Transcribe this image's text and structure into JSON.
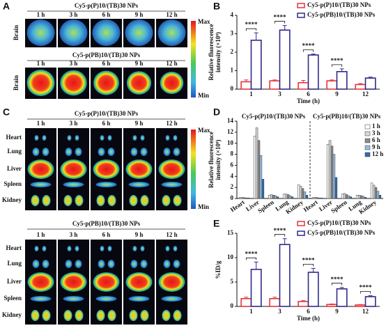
{
  "imaging": {
    "A": {
      "label": "A",
      "scale": [
        "Max",
        "Min"
      ],
      "groups": [
        {
          "title": "Cy5-p(P)10/(TB)30 NPs",
          "times": [
            "1 h",
            "3 h",
            "6 h",
            "9 h",
            "12 h"
          ],
          "organs": [
            "Brain"
          ]
        },
        {
          "title": "Cy5-p(PB)10/(TB)30 NPs",
          "times": [
            "1 h",
            "3 h",
            "6 h",
            "9 h",
            "12 h"
          ],
          "organs": [
            "Brain"
          ]
        }
      ]
    },
    "C": {
      "label": "C",
      "scale": [
        "Max",
        "Min"
      ],
      "groups": [
        {
          "title": "Cy5-p(P)10/(TB)30 NPs",
          "times": [
            "1 h",
            "3 h",
            "6 h",
            "9 h",
            "12 h"
          ],
          "organs": [
            "Heart",
            "Lung",
            "Liver",
            "Spleen",
            "Kidney"
          ]
        },
        {
          "title": "Cy5-p(PB)10/(TB)30 NPs",
          "times": [
            "1 h",
            "3 h",
            "6 h",
            "9 h",
            "12 h"
          ],
          "organs": [
            "Heart",
            "Lung",
            "Liver",
            "Spleen",
            "Kidney"
          ]
        }
      ]
    }
  },
  "chart_data": [
    {
      "type": "bar",
      "label": "B",
      "xlabel": "Time (h)",
      "ylabel": [
        "Relative fluorescence",
        "intensity (×10⁸)"
      ],
      "categories": [
        "1",
        "3",
        "6",
        "9",
        "12"
      ],
      "outline_bars": true,
      "legend": "upper right",
      "series": [
        {
          "name": "Cy5-p(P)10/(TB)30 NPs",
          "color": "#e8333a",
          "values": [
            0.4,
            0.45,
            0.35,
            0.45,
            0.25
          ],
          "errors": [
            0.1,
            0.05,
            0.12,
            0.05,
            0.05
          ]
        },
        {
          "name": "Cy5-p(PB)10/(TB)30 NPs",
          "color": "#2e2a8a",
          "values": [
            2.65,
            3.2,
            1.85,
            0.95,
            0.6
          ],
          "errors": [
            0.4,
            0.25,
            0.05,
            0.15,
            0.05
          ]
        }
      ],
      "significance": [
        "****",
        "****",
        "****",
        "****",
        null
      ],
      "ylim": [
        0,
        4
      ],
      "yticks": [
        0,
        1,
        2,
        3,
        4
      ]
    },
    {
      "type": "bar",
      "label": "D",
      "ylabel": [
        "Relative fluorescence",
        "intensity (×10⁸)"
      ],
      "categories": [
        "Heart",
        "Liver",
        "Spleen",
        "Lung",
        "Kidney",
        "Heart",
        "Liver",
        "Spleen",
        "Lung",
        "Kidney"
      ],
      "group_labels": [
        "Cy5-p(P)10/(TB)30 NPs",
        "Cy5-p(PB)10/(TB)30 NPs"
      ],
      "outline_bars": false,
      "legend": "upper right",
      "series": [
        {
          "name": "1 h",
          "color": "#ffffff",
          "values": [
            0.2,
            11.3,
            0.6,
            0.8,
            2.5,
            0.2,
            9.8,
            0.8,
            0.6,
            2.8
          ]
        },
        {
          "name": "3 h",
          "color": "#d9d9d9",
          "values": [
            0.2,
            12.8,
            0.7,
            0.8,
            2.2,
            0.2,
            10.5,
            0.9,
            0.6,
            2.4
          ]
        },
        {
          "name": "6 h",
          "color": "#8c8c8c",
          "values": [
            0.15,
            10.5,
            0.6,
            0.7,
            1.8,
            0.15,
            9.5,
            0.7,
            0.5,
            2.0
          ]
        },
        {
          "name": "9 h",
          "color": "#9bbde0",
          "values": [
            0.1,
            7.8,
            0.5,
            0.5,
            1.2,
            0.1,
            8.0,
            0.5,
            0.4,
            1.3
          ]
        },
        {
          "name": "12 h",
          "color": "#2f6db5",
          "values": [
            0.1,
            3.5,
            0.3,
            0.3,
            0.6,
            0.1,
            3.8,
            0.3,
            0.2,
            0.6
          ]
        }
      ],
      "ylim": [
        0,
        14
      ],
      "yticks": [
        0,
        2,
        4,
        6,
        8,
        10,
        12,
        14
      ]
    },
    {
      "type": "bar",
      "label": "E",
      "xlabel": "Time (h)",
      "ylabel": "%ID/g",
      "categories": [
        "1",
        "3",
        "6",
        "9",
        "12"
      ],
      "outline_bars": true,
      "legend": "upper right",
      "series": [
        {
          "name": "Cy5-p(P)10/(TB)30 NPs",
          "color": "#e8333a",
          "values": [
            1.6,
            1.6,
            1.0,
            0.4,
            0.3
          ],
          "errors": [
            0.3,
            0.3,
            0.2,
            0.1,
            0.1
          ]
        },
        {
          "name": "Cy5-p(PB)10/(TB)30 NPs",
          "color": "#2e2a8a",
          "values": [
            7.6,
            12.7,
            7.0,
            3.6,
            2.0
          ],
          "errors": [
            1.5,
            1.2,
            0.8,
            0.3,
            0.2
          ]
        }
      ],
      "significance": [
        "****",
        "****",
        "****",
        "****",
        "****"
      ],
      "ylim": [
        0,
        15
      ],
      "yticks": [
        0,
        5,
        10,
        15
      ]
    }
  ]
}
